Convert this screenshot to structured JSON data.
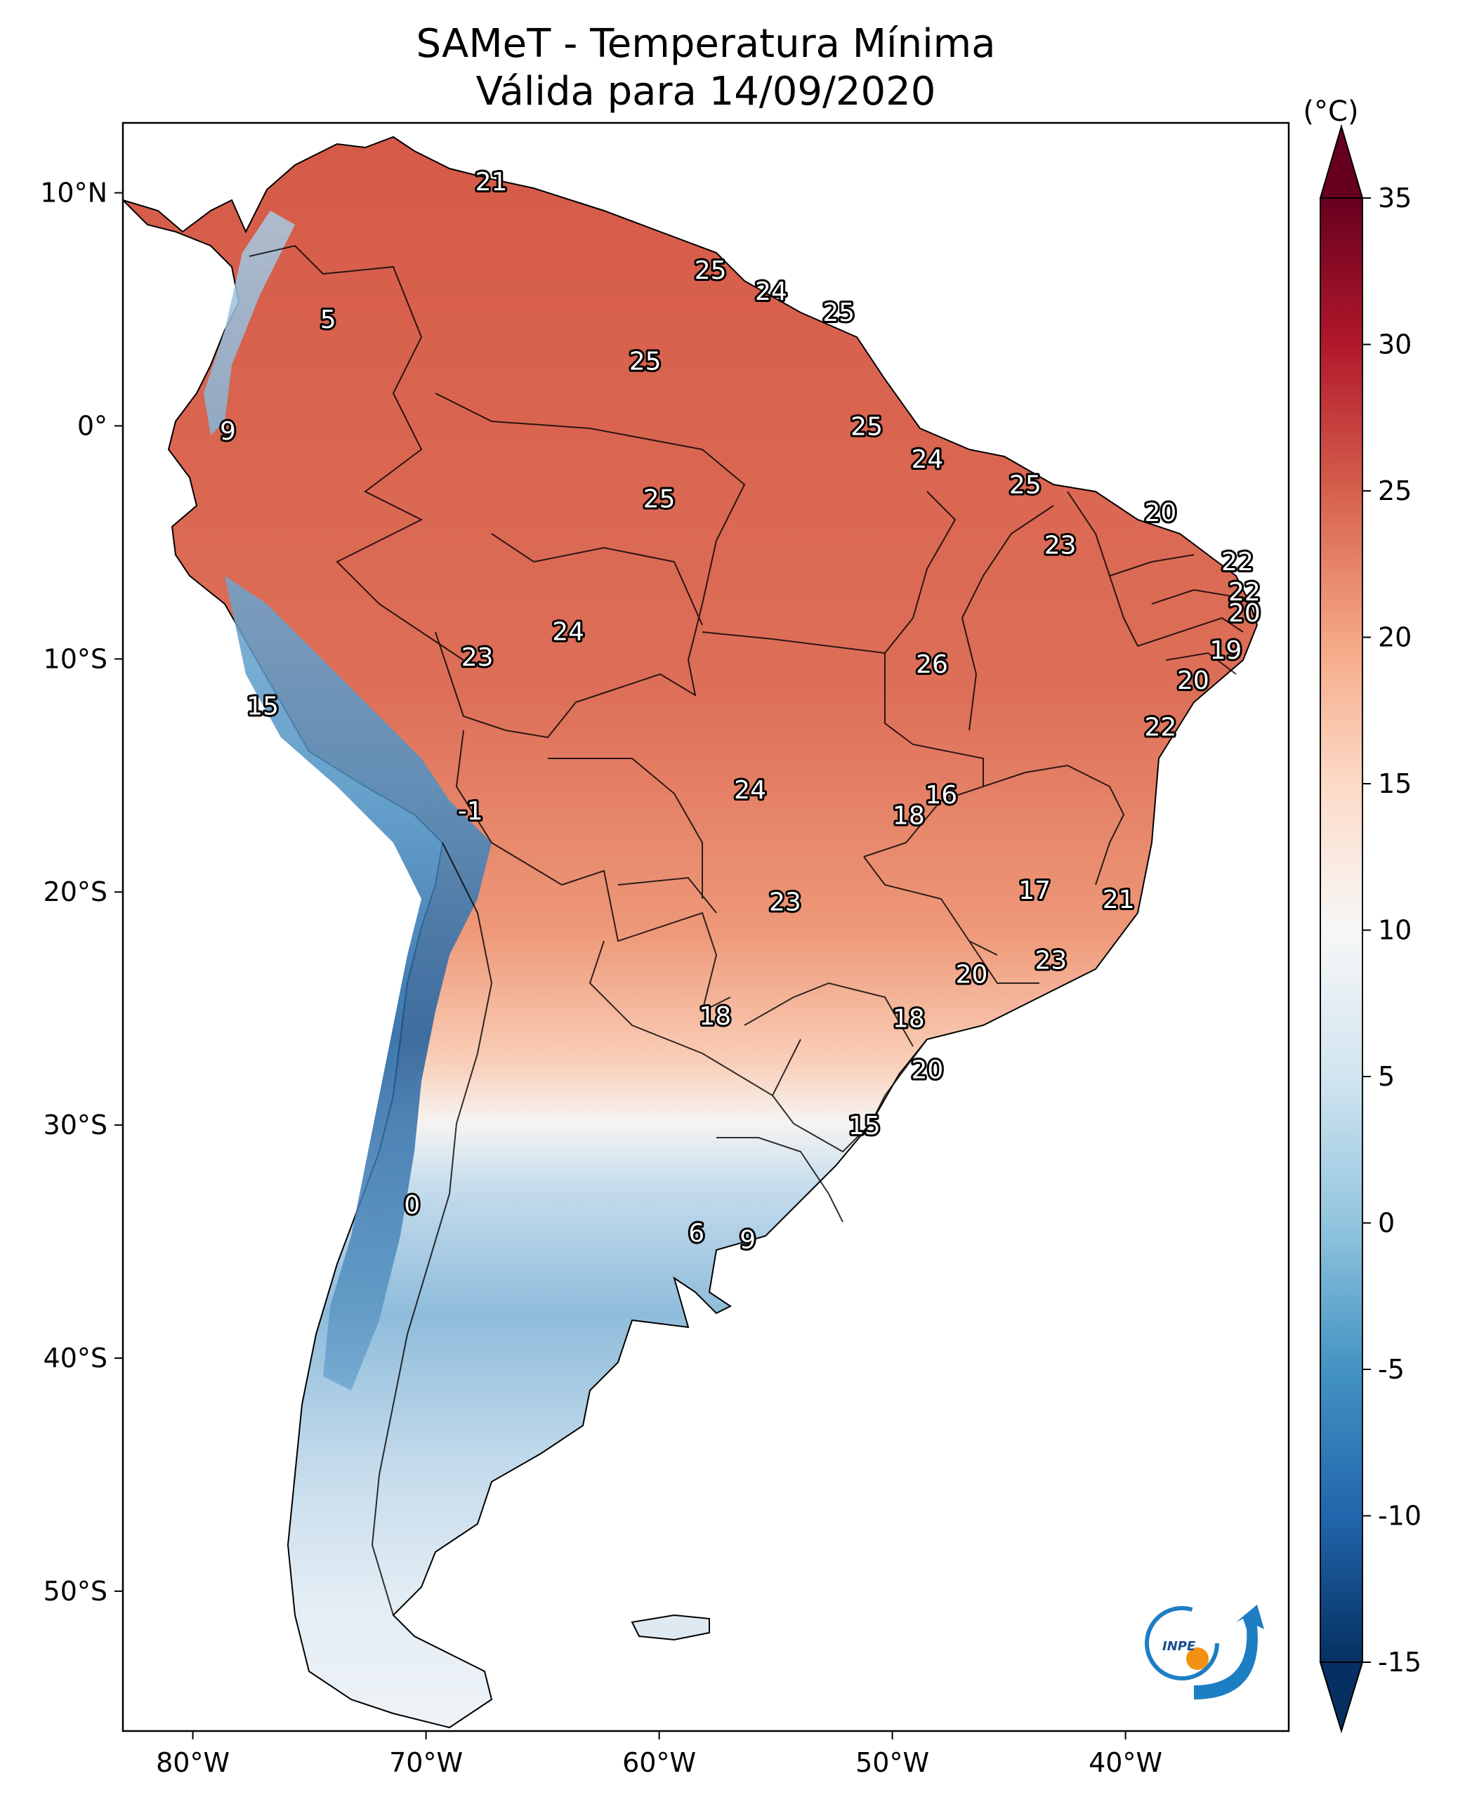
{
  "title": {
    "line1": "SAMeT - Temperatura Mínima",
    "line2": "Válida para 14/09/2020"
  },
  "map": {
    "extent": {
      "lon": [
        -83,
        -33
      ],
      "lat": [
        -56,
        13
      ]
    },
    "x_ticks": [
      {
        "lon": -80,
        "label": "80°W"
      },
      {
        "lon": -70,
        "label": "70°W"
      },
      {
        "lon": -60,
        "label": "60°W"
      },
      {
        "lon": -50,
        "label": "50°W"
      },
      {
        "lon": -40,
        "label": "40°W"
      }
    ],
    "y_ticks": [
      {
        "lat": 10,
        "label": "10°N"
      },
      {
        "lat": 0,
        "label": "0°"
      },
      {
        "lat": -10,
        "label": "10°S"
      },
      {
        "lat": -20,
        "label": "20°S"
      },
      {
        "lat": -30,
        "label": "30°S"
      },
      {
        "lat": -40,
        "label": "40°S"
      },
      {
        "lat": -50,
        "label": "50°S"
      }
    ],
    "city_values": [
      {
        "lon": -67.2,
        "lat": 10.5,
        "value": "21"
      },
      {
        "lon": -74.2,
        "lat": 4.6,
        "value": "5"
      },
      {
        "lon": -78.5,
        "lat": -0.2,
        "value": "9"
      },
      {
        "lon": -57.8,
        "lat": 6.7,
        "value": "25"
      },
      {
        "lon": -55.2,
        "lat": 5.8,
        "value": "24"
      },
      {
        "lon": -52.3,
        "lat": 4.9,
        "value": "25"
      },
      {
        "lon": -60.6,
        "lat": 2.8,
        "value": "25"
      },
      {
        "lon": -51.1,
        "lat": 0.0,
        "value": "25"
      },
      {
        "lon": -48.5,
        "lat": -1.4,
        "value": "24"
      },
      {
        "lon": -44.3,
        "lat": -2.5,
        "value": "25"
      },
      {
        "lon": -38.5,
        "lat": -3.7,
        "value": "20"
      },
      {
        "lon": -60.0,
        "lat": -3.1,
        "value": "25"
      },
      {
        "lon": -42.8,
        "lat": -5.1,
        "value": "23"
      },
      {
        "lon": -35.2,
        "lat": -5.8,
        "value": "22"
      },
      {
        "lon": -34.9,
        "lat": -7.1,
        "value": "22"
      },
      {
        "lon": -34.9,
        "lat": -8.0,
        "value": "20"
      },
      {
        "lon": -35.7,
        "lat": -9.6,
        "value": "19"
      },
      {
        "lon": -37.1,
        "lat": -10.9,
        "value": "20"
      },
      {
        "lon": -38.5,
        "lat": -12.9,
        "value": "22"
      },
      {
        "lon": -63.9,
        "lat": -8.8,
        "value": "24"
      },
      {
        "lon": -67.8,
        "lat": -9.9,
        "value": "23"
      },
      {
        "lon": -48.3,
        "lat": -10.2,
        "value": "26"
      },
      {
        "lon": -77.0,
        "lat": -12.0,
        "value": "15"
      },
      {
        "lon": -56.1,
        "lat": -15.6,
        "value": "24"
      },
      {
        "lon": -47.9,
        "lat": -15.8,
        "value": "16"
      },
      {
        "lon": -49.3,
        "lat": -16.7,
        "value": "18"
      },
      {
        "lon": -68.1,
        "lat": -16.5,
        "value": "-1"
      },
      {
        "lon": -43.9,
        "lat": -19.9,
        "value": "17"
      },
      {
        "lon": -40.3,
        "lat": -20.3,
        "value": "21"
      },
      {
        "lon": -54.6,
        "lat": -20.4,
        "value": "23"
      },
      {
        "lon": -43.2,
        "lat": -22.9,
        "value": "23"
      },
      {
        "lon": -46.6,
        "lat": -23.5,
        "value": "20"
      },
      {
        "lon": -57.6,
        "lat": -25.3,
        "value": "18"
      },
      {
        "lon": -49.3,
        "lat": -25.4,
        "value": "18"
      },
      {
        "lon": -48.5,
        "lat": -27.6,
        "value": "20"
      },
      {
        "lon": -51.2,
        "lat": -30.0,
        "value": "15"
      },
      {
        "lon": -70.6,
        "lat": -33.4,
        "value": "0"
      },
      {
        "lon": -58.4,
        "lat": -34.6,
        "value": "6"
      },
      {
        "lon": -56.2,
        "lat": -34.9,
        "value": "9"
      }
    ]
  },
  "colorbar": {
    "unit_label": "(°C)",
    "min": -15,
    "max": 35,
    "extend": "both",
    "ticks": [
      "35",
      "30",
      "25",
      "20",
      "15",
      "10",
      "5",
      "0",
      "-5",
      "-10",
      "-15"
    ],
    "colors": [
      "#053061",
      "#2166ac",
      "#4393c3",
      "#92c5de",
      "#d1e5f0",
      "#f7f7f7",
      "#fddbc7",
      "#f4a582",
      "#d6604d",
      "#b2182b",
      "#67001f"
    ]
  },
  "logo": {
    "text": "INPE"
  }
}
